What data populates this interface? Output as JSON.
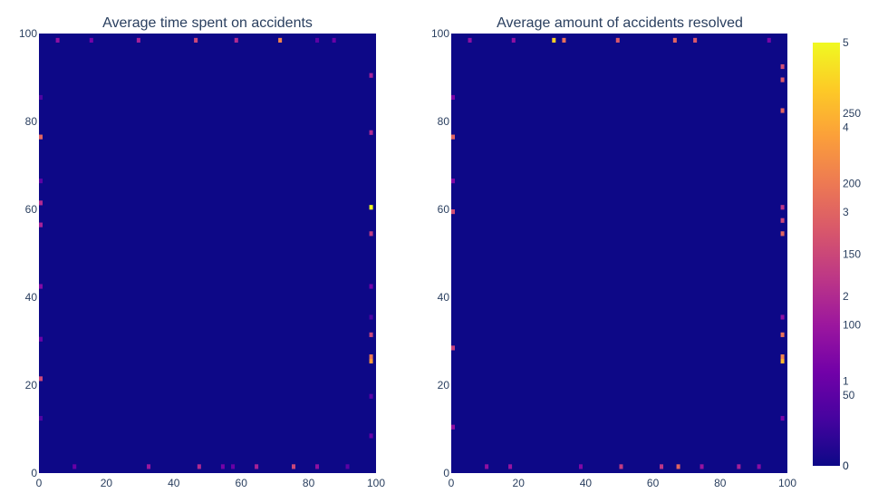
{
  "chart_data": [
    {
      "type": "heatmap",
      "title": "Average time spent on accidents",
      "xlabel": "",
      "ylabel": "",
      "xlim": [
        0,
        100
      ],
      "ylim": [
        0,
        100
      ],
      "x_ticks": [
        "0",
        "20",
        "40",
        "60",
        "80",
        "100"
      ],
      "y_ticks": [
        "0",
        "20",
        "40",
        "60",
        "80",
        "100"
      ],
      "grid_size": 100,
      "background_value": 0,
      "colorscale": [
        "#0d0887",
        "#46039f",
        "#7201a8",
        "#9c179e",
        "#bd3786",
        "#d8576b",
        "#ed7953",
        "#fb9f3a",
        "#fdca26",
        "#f0f921"
      ],
      "edge_cells": [
        [
          98,
          60,
          300
        ],
        [
          98,
          25,
          230
        ],
        [
          98,
          26,
          200
        ],
        [
          98,
          31,
          150
        ],
        [
          98,
          54,
          140
        ],
        [
          98,
          77,
          120
        ],
        [
          98,
          90,
          110
        ],
        [
          98,
          8,
          60
        ],
        [
          98,
          17,
          50
        ],
        [
          98,
          42,
          70
        ],
        [
          98,
          35,
          40
        ],
        [
          0,
          76,
          180
        ],
        [
          0,
          61,
          120
        ],
        [
          0,
          56,
          110
        ],
        [
          0,
          42,
          80
        ],
        [
          0,
          21,
          150
        ],
        [
          0,
          30,
          60
        ],
        [
          0,
          66,
          50
        ],
        [
          0,
          12,
          40
        ],
        [
          0,
          85,
          40
        ],
        [
          71,
          98,
          210
        ],
        [
          46,
          98,
          150
        ],
        [
          58,
          98,
          120
        ],
        [
          29,
          98,
          110
        ],
        [
          5,
          98,
          90
        ],
        [
          87,
          98,
          60
        ],
        [
          15,
          98,
          70
        ],
        [
          82,
          98,
          50
        ],
        [
          47,
          1,
          120
        ],
        [
          75,
          1,
          150
        ],
        [
          32,
          1,
          100
        ],
        [
          82,
          1,
          90
        ],
        [
          64,
          1,
          110
        ],
        [
          54,
          1,
          70
        ],
        [
          10,
          1,
          60
        ],
        [
          91,
          1,
          50
        ],
        [
          57,
          1,
          60
        ]
      ]
    },
    {
      "type": "heatmap",
      "title": "Average amount of accidents resolved",
      "xlabel": "",
      "ylabel": "",
      "xlim": [
        0,
        100
      ],
      "ylim": [
        0,
        100
      ],
      "x_ticks": [
        "0",
        "20",
        "40",
        "60",
        "80",
        "100"
      ],
      "y_ticks": [
        "0",
        "20",
        "40",
        "60",
        "80",
        "100"
      ],
      "grid_size": 100,
      "background_value": 0,
      "colorscale": [
        "#0d0887",
        "#46039f",
        "#7201a8",
        "#9c179e",
        "#bd3786",
        "#d8576b",
        "#ed7953",
        "#fb9f3a",
        "#fdca26",
        "#f0f921"
      ],
      "edge_cells": [
        [
          98,
          25,
          4.2
        ],
        [
          98,
          26,
          3.5
        ],
        [
          98,
          31,
          3.2
        ],
        [
          98,
          54,
          3.0
        ],
        [
          98,
          57,
          2.5
        ],
        [
          98,
          60,
          2.2
        ],
        [
          98,
          82,
          3.0
        ],
        [
          98,
          89,
          2.8
        ],
        [
          98,
          92,
          2.6
        ],
        [
          98,
          35,
          1.5
        ],
        [
          98,
          12,
          1.2
        ],
        [
          0,
          76,
          3.0
        ],
        [
          0,
          59,
          2.6
        ],
        [
          0,
          28,
          2.4
        ],
        [
          0,
          10,
          1.5
        ],
        [
          0,
          66,
          1.3
        ],
        [
          0,
          85,
          1.2
        ],
        [
          30,
          98,
          4.5
        ],
        [
          33,
          98,
          3.2
        ],
        [
          66,
          98,
          3.0
        ],
        [
          72,
          98,
          2.8
        ],
        [
          49,
          98,
          2.8
        ],
        [
          94,
          98,
          1.2
        ],
        [
          5,
          98,
          1.5
        ],
        [
          18,
          98,
          1.5
        ],
        [
          67,
          1,
          3.0
        ],
        [
          50,
          1,
          2.3
        ],
        [
          62,
          1,
          2.2
        ],
        [
          85,
          1,
          1.8
        ],
        [
          17,
          1,
          1.6
        ],
        [
          10,
          1,
          1.5
        ],
        [
          38,
          1,
          1.3
        ],
        [
          74,
          1,
          1.6
        ],
        [
          91,
          1,
          1.4
        ]
      ]
    }
  ],
  "colorbar": {
    "labels_a": [
      "0",
      "50",
      "100",
      "150",
      "200",
      "250"
    ],
    "labels_b": [
      "0",
      "1",
      "2",
      "3",
      "4",
      "5"
    ]
  }
}
